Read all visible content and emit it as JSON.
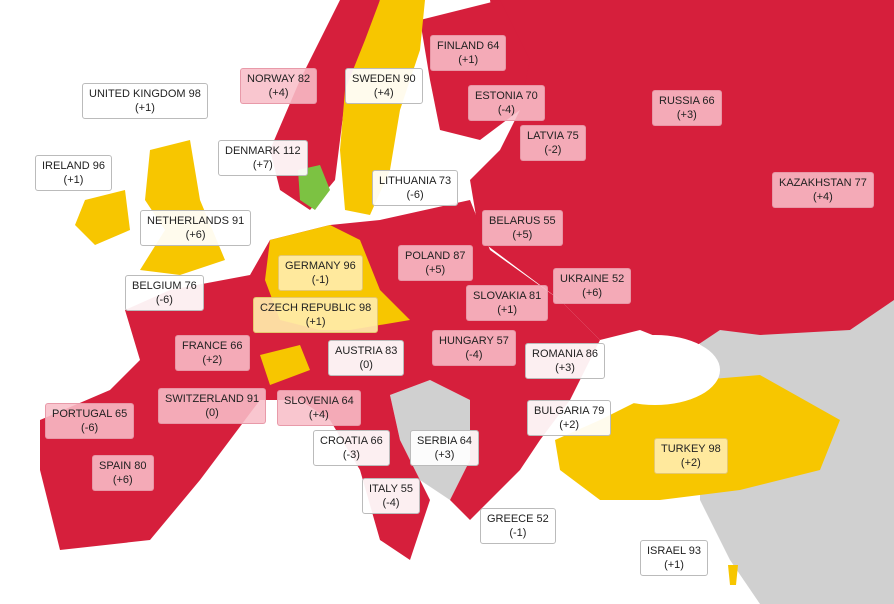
{
  "labels": [
    {
      "name": "FINLAND 64",
      "change": "(+1)"
    },
    {
      "name": "NORWAY 82",
      "change": "(+4)"
    },
    {
      "name": "SWEDEN 90",
      "change": "(+4)"
    },
    {
      "name": "UNITED KINGDOM 98",
      "change": "(+1)"
    },
    {
      "name": "ESTONIA 70",
      "change": "(-4)"
    },
    {
      "name": "RUSSIA 66",
      "change": "(+3)"
    },
    {
      "name": "LATVIA 75",
      "change": "(-2)"
    },
    {
      "name": "DENMARK 112",
      "change": "(+7)"
    },
    {
      "name": "IRELAND 96",
      "change": "(+1)"
    },
    {
      "name": "LITHUANIA 73",
      "change": "(-6)"
    },
    {
      "name": "KAZAKHSTAN 77",
      "change": "(+4)"
    },
    {
      "name": "NETHERLANDS 91",
      "change": "(+6)"
    },
    {
      "name": "BELARUS 55",
      "change": "(+5)"
    },
    {
      "name": "POLAND 87",
      "change": "(+5)"
    },
    {
      "name": "GERMANY 96",
      "change": "(-1)"
    },
    {
      "name": "UKRAINE 52",
      "change": "(+6)"
    },
    {
      "name": "BELGIUM 76",
      "change": "(-6)"
    },
    {
      "name": "SLOVAKIA 81",
      "change": "(+1)"
    },
    {
      "name": "CZECH REPUBLIC 98",
      "change": "(+1)"
    },
    {
      "name": "FRANCE 66",
      "change": "(+2)"
    },
    {
      "name": "HUNGARY 57",
      "change": "(-4)"
    },
    {
      "name": "AUSTRIA 83",
      "change": "(0)"
    },
    {
      "name": "ROMANIA 86",
      "change": "(+3)"
    },
    {
      "name": "SWITZERLAND 91",
      "change": "(0)"
    },
    {
      "name": "SLOVENIA 64",
      "change": "(+4)"
    },
    {
      "name": "PORTUGAL 65",
      "change": "(-6)"
    },
    {
      "name": "BULGARIA 79",
      "change": "(+2)"
    },
    {
      "name": "CROATIA 66",
      "change": "(-3)"
    },
    {
      "name": "SERBIA 64",
      "change": "(+3)"
    },
    {
      "name": "TURKEY 98",
      "change": "(+2)"
    },
    {
      "name": "SPAIN 80",
      "change": "(+6)"
    },
    {
      "name": "ITALY 55",
      "change": "(-4)"
    },
    {
      "name": "GREECE 52",
      "change": "(-1)"
    },
    {
      "name": "ISRAEL 93",
      "change": "(+1)"
    }
  ]
}
